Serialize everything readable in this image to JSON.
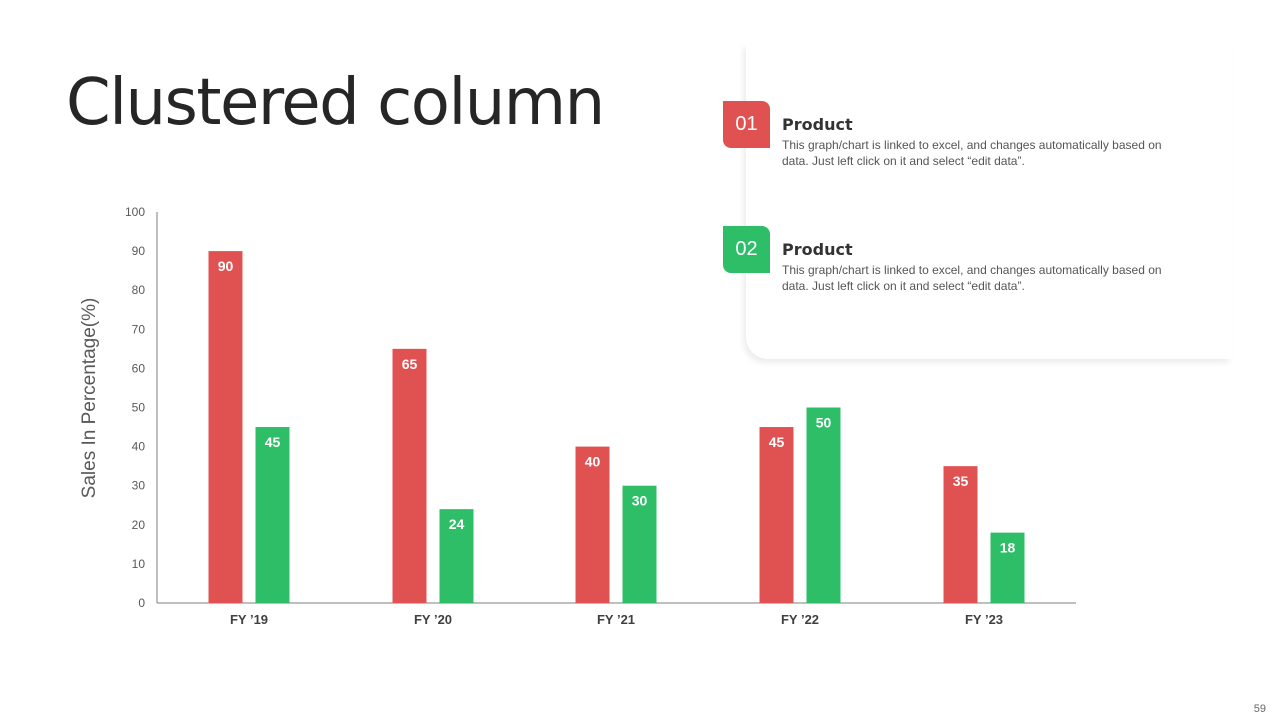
{
  "slide": {
    "title": "Clustered column",
    "page_number": "59"
  },
  "legend": {
    "items": [
      {
        "number": "01",
        "title": "Product",
        "description": "This graph/chart is linked to excel, and changes automatically based on data. Just left click on it and select “edit data”.",
        "color": "#E05252"
      },
      {
        "number": "02",
        "title": "Product",
        "description": "This graph/chart is linked to excel, and changes automatically based on data. Just left click on it and select “edit data”.",
        "color": "#2DBE67"
      }
    ]
  },
  "chart_data": {
    "type": "bar",
    "title": "",
    "xlabel": "",
    "ylabel": "Sales In Percentage(%)",
    "categories": [
      "FY ’19",
      "FY ’20",
      "FY ’21",
      "FY ’22",
      "FY ’23"
    ],
    "ylim": [
      0,
      100
    ],
    "yticks": [
      0,
      10,
      20,
      30,
      40,
      50,
      60,
      70,
      80,
      90,
      100
    ],
    "grid": false,
    "data_labels": true,
    "series": [
      {
        "values": [
          90,
          65,
          40,
          45,
          35
        ],
        "color": "#E05252"
      },
      {
        "values": [
          45,
          24,
          30,
          50,
          18
        ],
        "color": "#2DBE67"
      }
    ]
  }
}
